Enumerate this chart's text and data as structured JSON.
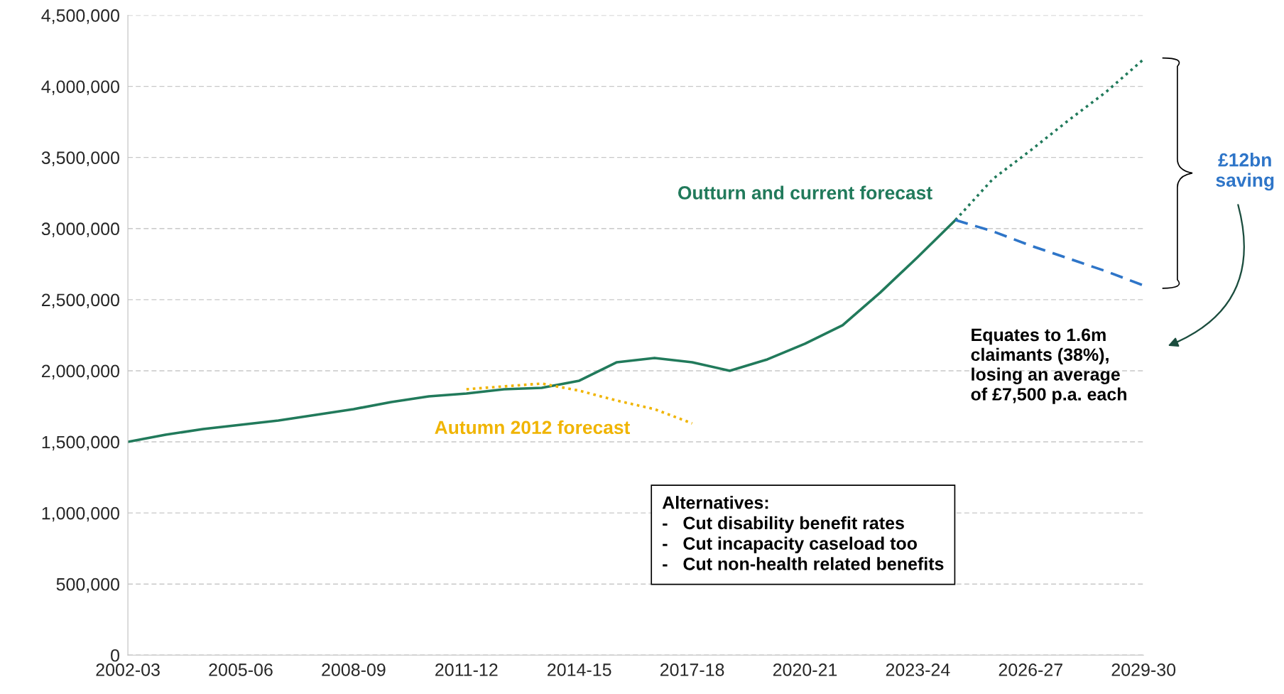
{
  "chart_data": {
    "type": "line",
    "categories": [
      "2002-03",
      null,
      null,
      "2005-06",
      null,
      null,
      "2008-09",
      null,
      null,
      "2011-12",
      null,
      null,
      "2014-15",
      null,
      null,
      "2017-18",
      null,
      null,
      "2020-21",
      null,
      null,
      "2023-24",
      null,
      null,
      "2026-27",
      null,
      null,
      "2029-30"
    ],
    "series": [
      {
        "name": "Outturn and current forecast",
        "color": "#217a5b",
        "line_style": "solid",
        "values": [
          1500000,
          1550000,
          1590000,
          1620000,
          1650000,
          1690000,
          1730000,
          1780000,
          1820000,
          1840000,
          1870000,
          1880000,
          1930000,
          2060000,
          2090000,
          2060000,
          2000000,
          2080000,
          2190000,
          2320000,
          2550000,
          2800000,
          3060000,
          null,
          null,
          null,
          null,
          null
        ]
      },
      {
        "color": "#217a5b",
        "line_style": "dotted",
        "values": [
          null,
          null,
          null,
          null,
          null,
          null,
          null,
          null,
          null,
          null,
          null,
          null,
          null,
          null,
          null,
          null,
          null,
          null,
          null,
          null,
          null,
          null,
          3060000,
          3350000,
          3550000,
          3760000,
          3960000,
          4190000
        ]
      },
      {
        "color": "#2e75c8",
        "line_style": "dashed",
        "values": [
          null,
          null,
          null,
          null,
          null,
          null,
          null,
          null,
          null,
          null,
          null,
          null,
          null,
          null,
          null,
          null,
          null,
          null,
          null,
          null,
          null,
          null,
          3060000,
          2980000,
          2880000,
          2790000,
          2700000,
          2600000
        ]
      },
      {
        "name": "Autumn 2012 forecast",
        "color": "#f0b400",
        "line_style": "dotted",
        "values": [
          null,
          null,
          null,
          null,
          null,
          null,
          null,
          null,
          null,
          1870000,
          1890000,
          1910000,
          1860000,
          1790000,
          1730000,
          1630000,
          null,
          null,
          null,
          null,
          null,
          null,
          null,
          null,
          null,
          null,
          null,
          null
        ]
      }
    ],
    "ylim": [
      0,
      4500000
    ],
    "yticks": [
      0,
      {
        "value": 500000,
        "label": "500,000"
      },
      {
        "value": 1000000,
        "label": "1,000,000"
      },
      {
        "value": 1500000,
        "label": "1,500,000"
      },
      {
        "value": 2000000,
        "label": "2,000,000"
      },
      {
        "value": 2500000,
        "label": "2,500,000"
      },
      {
        "value": 3000000,
        "label": "3,000,000"
      },
      {
        "value": 3500000,
        "label": "3,500,000"
      },
      {
        "value": 4000000,
        "label": "4,000,000"
      },
      {
        "value": 4500000,
        "label": "4,500,000"
      }
    ],
    "grid": "y",
    "marker": "none",
    "annotations": [
      "£12bn\nsaving",
      "Equates to 1.6m\nclaimants (38%),\nlosing an average\nof £7,500 p.a. each",
      "Alternatives:\n-   Cut disability benefit rates\n-   Cut incapacity caseload too\n-   Cut non-health related benefits"
    ]
  }
}
